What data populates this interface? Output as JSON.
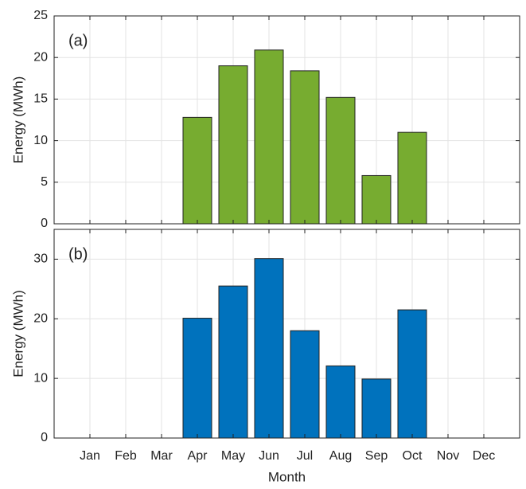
{
  "chart_data": [
    {
      "type": "bar",
      "annotation": "(a)",
      "y_label": "Energy (MWh)",
      "categories": [
        null,
        null,
        null,
        null,
        null,
        null,
        null,
        null,
        null,
        null,
        null,
        null
      ],
      "values": [
        0,
        0,
        0,
        12.8,
        19,
        20.9,
        18.4,
        15.2,
        5.8,
        11,
        0,
        0
      ],
      "color": "#77ac30",
      "ylim": [
        0,
        25
      ],
      "yticks": [
        0,
        5,
        10,
        15,
        20,
        25
      ],
      "grid": true
    },
    {
      "type": "bar",
      "annotation": "(b)",
      "y_label": "Energy (MWh)",
      "x_label": "Month",
      "categories": [
        "Jan",
        "Feb",
        "Mar",
        "Apr",
        "May",
        "Jun",
        "Jul",
        "Aug",
        "Sep",
        "Oct",
        "Nov",
        "Dec"
      ],
      "values": [
        0,
        0,
        0,
        20.1,
        25.5,
        30.1,
        18,
        12.1,
        9.9,
        21.5,
        0,
        0
      ],
      "color": "#0072bd",
      "ylim": [
        0,
        35
      ],
      "yticks": [
        0,
        10,
        20,
        30
      ],
      "grid": true
    }
  ]
}
